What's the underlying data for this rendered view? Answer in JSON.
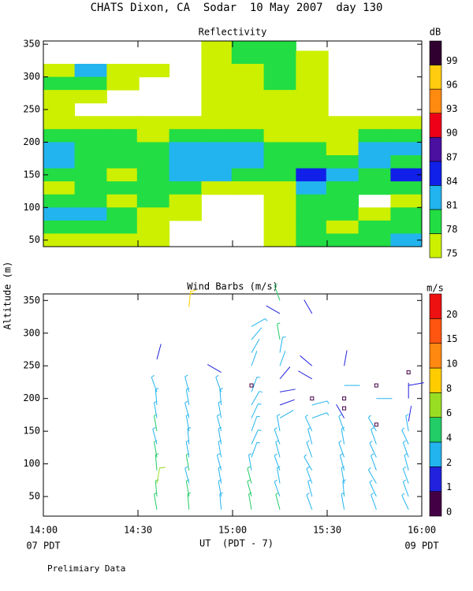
{
  "title": "CHATS Dixon, CA  Sodar  10 May 2007  day 130",
  "footer": "Prelimiary Data",
  "chart_data": [
    {
      "type": "contour",
      "title": "Reflectivity",
      "colorbar_label": "dB",
      "x": [
        14.08,
        14.25,
        14.42,
        14.58,
        14.75,
        14.92,
        15.08,
        15.25,
        15.42,
        15.58,
        15.75,
        15.92
      ],
      "y": [
        350,
        330,
        310,
        290,
        270,
        250,
        230,
        210,
        190,
        170,
        150,
        130,
        110,
        90,
        70,
        50
      ],
      "z": [
        [
          null,
          null,
          null,
          null,
          null,
          75,
          78,
          78,
          null,
          null,
          null,
          null
        ],
        [
          null,
          null,
          null,
          null,
          null,
          75,
          78,
          78,
          75,
          null,
          null,
          null
        ],
        [
          75,
          81,
          75,
          75,
          null,
          75,
          75,
          78,
          75,
          null,
          null,
          null
        ],
        [
          78,
          78,
          75,
          null,
          null,
          75,
          75,
          78,
          75,
          null,
          null,
          null
        ],
        [
          75,
          75,
          null,
          null,
          null,
          75,
          75,
          75,
          75,
          null,
          null,
          null
        ],
        [
          75,
          null,
          null,
          null,
          null,
          75,
          75,
          75,
          75,
          null,
          null,
          null
        ],
        [
          75,
          75,
          75,
          75,
          75,
          75,
          75,
          75,
          75,
          75,
          75,
          75
        ],
        [
          78,
          78,
          78,
          75,
          78,
          78,
          78,
          75,
          75,
          75,
          78,
          78
        ],
        [
          81,
          78,
          78,
          78,
          81,
          81,
          81,
          78,
          78,
          75,
          81,
          81
        ],
        [
          81,
          78,
          78,
          78,
          81,
          81,
          81,
          78,
          78,
          78,
          81,
          78
        ],
        [
          78,
          78,
          75,
          78,
          81,
          81,
          78,
          78,
          84,
          81,
          78,
          84
        ],
        [
          75,
          78,
          78,
          78,
          78,
          75,
          75,
          75,
          81,
          78,
          78,
          78
        ],
        [
          78,
          78,
          75,
          78,
          75,
          null,
          null,
          75,
          78,
          78,
          null,
          75
        ],
        [
          81,
          81,
          78,
          75,
          75,
          null,
          null,
          75,
          78,
          78,
          75,
          78
        ],
        [
          78,
          78,
          78,
          75,
          null,
          null,
          null,
          75,
          78,
          75,
          78,
          78
        ],
        [
          75,
          75,
          75,
          75,
          null,
          null,
          null,
          75,
          78,
          78,
          78,
          81
        ]
      ],
      "levels": [
        75,
        78,
        81,
        84,
        87,
        90,
        93,
        96,
        99
      ],
      "colors": [
        "#ccf000",
        "#22dd44",
        "#22b4ee",
        "#1020e8",
        "#4a10a0",
        "#ee0018",
        "#ff8a10",
        "#ffcc10",
        "#300030"
      ],
      "xlim": [
        14,
        16
      ],
      "ylim": [
        40,
        355
      ],
      "yticks": [
        50,
        100,
        150,
        200,
        250,
        300,
        350
      ]
    },
    {
      "type": "barbs",
      "title": "Wind Barbs (m/s)",
      "colorbar_label": "m/s",
      "ylabel": "Altitude (m)",
      "xlabel": "UT  (PDT - 7)",
      "x_start_label": "07 PDT",
      "x_end_label": "09 PDT",
      "columns": [
        {
          "time": 14.6,
          "altitude": [
            30,
            50,
            70,
            90,
            110,
            130,
            150,
            170,
            190,
            210,
            260
          ],
          "speed": [
            4,
            4,
            6,
            4,
            4,
            3,
            4,
            3,
            3,
            3,
            1.5
          ],
          "direction": [
            350,
            355,
            10,
            355,
            350,
            345,
            350,
            350,
            355,
            340,
            15
          ]
        },
        {
          "time": 14.77,
          "altitude": [
            30,
            50,
            70,
            90,
            110,
            130,
            150,
            170,
            190,
            210,
            340
          ],
          "speed": [
            4,
            4,
            3,
            4,
            3,
            3,
            3,
            3,
            3,
            3,
            9
          ],
          "direction": [
            355,
            350,
            345,
            350,
            350,
            355,
            350,
            345,
            350,
            345,
            5
          ]
        },
        {
          "time": 14.94,
          "altitude": [
            30,
            50,
            70,
            90,
            110,
            130,
            150,
            170,
            190,
            210,
            240
          ],
          "speed": [
            3,
            3,
            3,
            3,
            3,
            3,
            3,
            3,
            3,
            3,
            1.5
          ],
          "direction": [
            355,
            350,
            350,
            345,
            350,
            350,
            345,
            350,
            355,
            340,
            300
          ]
        },
        {
          "time": 15.1,
          "altitude": [
            30,
            50,
            70,
            90,
            110,
            130,
            150,
            170,
            190,
            210,
            220,
            250,
            270,
            290,
            310
          ],
          "speed": [
            4,
            4,
            4,
            3,
            3,
            3,
            3,
            3,
            3,
            3,
            0.5,
            2,
            2,
            2,
            3
          ],
          "direction": [
            350,
            345,
            345,
            350,
            20,
            25,
            20,
            25,
            30,
            20,
            0,
            20,
            30,
            40,
            60
          ]
        },
        {
          "time": 15.25,
          "altitude": [
            30,
            50,
            70,
            90,
            110,
            130,
            150,
            170,
            190,
            210,
            230,
            250,
            270,
            290,
            330,
            350
          ],
          "speed": [
            4,
            3,
            3,
            3,
            3,
            3,
            3,
            2,
            1.5,
            1.5,
            1.5,
            2,
            3,
            4,
            1.5,
            4
          ],
          "direction": [
            345,
            340,
            350,
            340,
            345,
            340,
            350,
            60,
            70,
            80,
            40,
            20,
            10,
            350,
            300,
            340
          ]
        },
        {
          "time": 15.42,
          "altitude": [
            30,
            50,
            70,
            90,
            110,
            130,
            150,
            170,
            190,
            200,
            230,
            250,
            330
          ],
          "speed": [
            3,
            3,
            3,
            3,
            3,
            3,
            3,
            2.5,
            2.5,
            0.5,
            1.5,
            1.5,
            1.5
          ],
          "direction": [
            340,
            345,
            340,
            330,
            340,
            345,
            335,
            70,
            75,
            0,
            300,
            310,
            330
          ]
        },
        {
          "time": 15.59,
          "altitude": [
            30,
            50,
            70,
            90,
            110,
            130,
            150,
            170,
            185,
            200,
            220,
            250
          ],
          "speed": [
            3,
            3,
            3,
            3,
            3,
            3,
            3,
            1.5,
            0.5,
            0.5,
            2,
            1.5
          ],
          "direction": [
            350,
            355,
            350,
            345,
            340,
            350,
            340,
            330,
            0,
            0,
            90,
            10
          ]
        },
        {
          "time": 15.76,
          "altitude": [
            30,
            50,
            70,
            90,
            110,
            130,
            150,
            160,
            200,
            220
          ],
          "speed": [
            3,
            3,
            3,
            3,
            3,
            3,
            3,
            0.5,
            2,
            0.5
          ],
          "direction": [
            340,
            335,
            330,
            340,
            335,
            340,
            330,
            0,
            90,
            0
          ]
        },
        {
          "time": 15.93,
          "altitude": [
            30,
            50,
            70,
            90,
            110,
            130,
            150,
            165,
            200,
            220,
            240
          ],
          "speed": [
            3,
            3,
            3,
            3,
            3,
            3,
            3,
            1.5,
            1.5,
            1.5,
            0.5
          ],
          "direction": [
            335,
            340,
            340,
            345,
            340,
            335,
            350,
            10,
            0,
            80,
            0
          ]
        }
      ],
      "levels": [
        0,
        1,
        2,
        4,
        6,
        8,
        10,
        15,
        20
      ],
      "colors": [
        "#440044",
        "#2222dd",
        "#22b4ee",
        "#22cc66",
        "#99dd22",
        "#ffcc00",
        "#ff8811",
        "#ff5511",
        "#ee1111"
      ],
      "xlim": [
        14,
        16
      ],
      "ylim": [
        20,
        360
      ],
      "xticks": [
        {
          "value": 14,
          "label": "14:00"
        },
        {
          "value": 14.5,
          "label": "14:30"
        },
        {
          "value": 15,
          "label": "15:00"
        },
        {
          "value": 15.5,
          "label": "15:30"
        },
        {
          "value": 16,
          "label": "16:00"
        }
      ],
      "yticks": [
        50,
        100,
        150,
        200,
        250,
        300,
        350
      ]
    }
  ]
}
